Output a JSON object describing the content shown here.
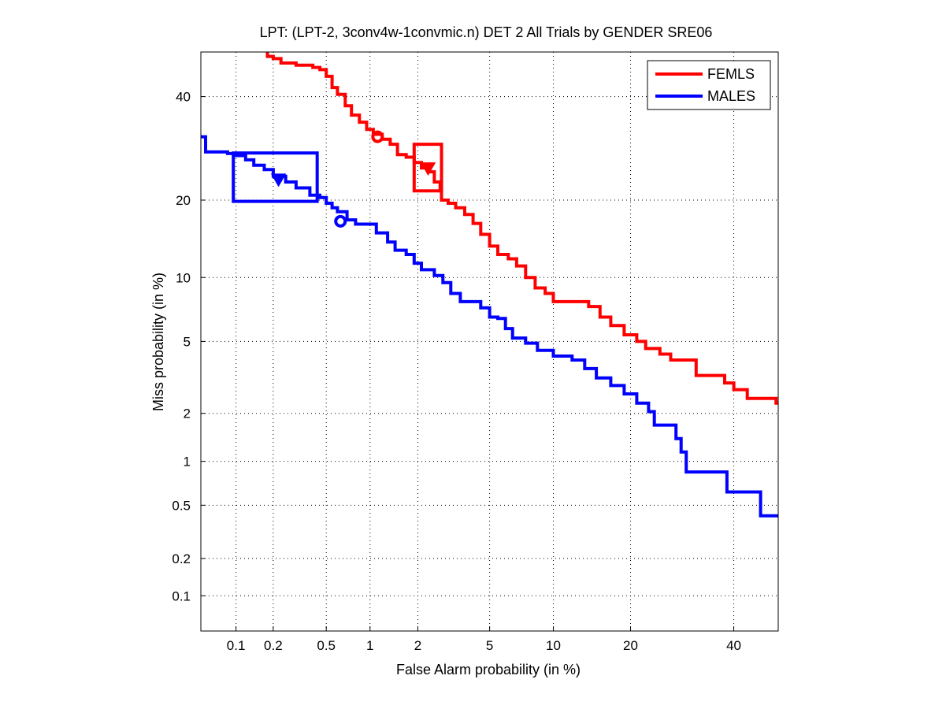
{
  "chart_data": {
    "type": "line",
    "title": "LPT: (LPT-2, 3conv4w-1convmic.n) DET 2 All Trials by GENDER SRE06",
    "xlabel": "False Alarm probability (in %)",
    "ylabel": "Miss probability (in %)",
    "xscale": "normal-deviate",
    "yscale": "normal-deviate",
    "xlim": [
      0.05,
      50
    ],
    "ylim": [
      0.05,
      50
    ],
    "xticks": [
      0.1,
      0.2,
      0.5,
      1,
      2,
      5,
      10,
      20,
      40
    ],
    "xtick_labels": [
      "0.1",
      "0.2",
      "0.5",
      "1",
      "2",
      "5",
      "10",
      "20",
      "40"
    ],
    "yticks": [
      0.1,
      0.2,
      0.5,
      1,
      2,
      5,
      10,
      20,
      40
    ],
    "ytick_labels": [
      "0.1",
      "0.2",
      "0.5",
      "1",
      "2",
      "5",
      "10",
      "20",
      "40"
    ],
    "grid": true,
    "legend_position": "top-right",
    "series": [
      {
        "name": "FEMLS",
        "color": "#ff0000",
        "points": [
          [
            0.18,
            50
          ],
          [
            0.18,
            49.0
          ],
          [
            0.2,
            48.5
          ],
          [
            0.23,
            47.5
          ],
          [
            0.3,
            47.0
          ],
          [
            0.4,
            46.5
          ],
          [
            0.45,
            46.0
          ],
          [
            0.5,
            44.5
          ],
          [
            0.55,
            42.0
          ],
          [
            0.6,
            40.5
          ],
          [
            0.68,
            38.0
          ],
          [
            0.75,
            36.0
          ],
          [
            0.85,
            34.5
          ],
          [
            0.95,
            33.0
          ],
          [
            1.05,
            32.0
          ],
          [
            1.2,
            31.0
          ],
          [
            1.35,
            30.0
          ],
          [
            1.5,
            28.0
          ],
          [
            1.7,
            27.5
          ],
          [
            1.9,
            26.5
          ],
          [
            2.1,
            25.5
          ],
          [
            2.3,
            24.8
          ],
          [
            2.5,
            23.0
          ],
          [
            2.7,
            21.5
          ],
          [
            2.75,
            20.0
          ],
          [
            3.0,
            19.5
          ],
          [
            3.3,
            18.8
          ],
          [
            3.7,
            17.8
          ],
          [
            4.1,
            16.5
          ],
          [
            4.5,
            15.0
          ],
          [
            5.0,
            13.5
          ],
          [
            5.5,
            12.5
          ],
          [
            6.2,
            12.0
          ],
          [
            6.8,
            11.2
          ],
          [
            7.5,
            10.0
          ],
          [
            8.3,
            9.0
          ],
          [
            9.2,
            8.5
          ],
          [
            10.0,
            7.8
          ],
          [
            12.0,
            7.8
          ],
          [
            14.0,
            7.4
          ],
          [
            15.5,
            6.6
          ],
          [
            17.0,
            6.0
          ],
          [
            19.0,
            5.4
          ],
          [
            21.0,
            5.0
          ],
          [
            22.5,
            4.6
          ],
          [
            25.0,
            4.3
          ],
          [
            27.0,
            4.0
          ],
          [
            31.0,
            4.0
          ],
          [
            32.0,
            3.3
          ],
          [
            35.0,
            3.3
          ],
          [
            38.0,
            3.0
          ],
          [
            40.0,
            2.75
          ],
          [
            43.0,
            2.45
          ],
          [
            49.0,
            2.45
          ],
          [
            49.5,
            2.3
          ],
          [
            50,
            2.3
          ]
        ],
        "markers": [
          {
            "shape": "circle",
            "x": 1.12,
            "y": 31.5
          },
          {
            "shape": "triangle-down",
            "x": 2.3,
            "y": 25.5
          }
        ],
        "confidence_box": {
          "x": [
            1.9,
            2.75
          ],
          "y": [
            21.5,
            30.0
          ]
        }
      },
      {
        "name": "MALES",
        "color": "#0000ff",
        "points": [
          [
            0.05,
            31.5
          ],
          [
            0.055,
            31.5
          ],
          [
            0.055,
            28.5
          ],
          [
            0.075,
            28.5
          ],
          [
            0.085,
            28.2
          ],
          [
            0.1,
            27.8
          ],
          [
            0.12,
            27.0
          ],
          [
            0.14,
            26.0
          ],
          [
            0.17,
            25.2
          ],
          [
            0.2,
            24.0
          ],
          [
            0.25,
            23.0
          ],
          [
            0.3,
            22.0
          ],
          [
            0.38,
            20.8
          ],
          [
            0.45,
            20.4
          ],
          [
            0.5,
            19.5
          ],
          [
            0.55,
            18.8
          ],
          [
            0.6,
            18.2
          ],
          [
            0.7,
            17.0
          ],
          [
            0.8,
            16.4
          ],
          [
            1.0,
            16.4
          ],
          [
            1.1,
            15.2
          ],
          [
            1.3,
            14.0
          ],
          [
            1.45,
            13.0
          ],
          [
            1.7,
            12.5
          ],
          [
            1.9,
            11.5
          ],
          [
            2.1,
            10.8
          ],
          [
            2.5,
            10.2
          ],
          [
            2.8,
            9.5
          ],
          [
            3.1,
            8.5
          ],
          [
            3.5,
            7.8
          ],
          [
            4.2,
            7.8
          ],
          [
            4.5,
            7.3
          ],
          [
            5.0,
            6.6
          ],
          [
            5.5,
            6.5
          ],
          [
            6.0,
            5.8
          ],
          [
            6.5,
            5.2
          ],
          [
            7.5,
            4.9
          ],
          [
            8.5,
            4.5
          ],
          [
            10.0,
            4.2
          ],
          [
            12.0,
            4.0
          ],
          [
            13.5,
            3.6
          ],
          [
            15.0,
            3.2
          ],
          [
            17.0,
            2.9
          ],
          [
            19.0,
            2.6
          ],
          [
            21.0,
            2.3
          ],
          [
            23.0,
            2.05
          ],
          [
            24.0,
            1.7
          ],
          [
            27.0,
            1.7
          ],
          [
            28.0,
            1.4
          ],
          [
            29.0,
            1.15
          ],
          [
            30.0,
            0.85
          ],
          [
            37.0,
            0.85
          ],
          [
            38.5,
            0.62
          ],
          [
            45.0,
            0.62
          ],
          [
            46.0,
            0.42
          ],
          [
            50,
            0.42
          ]
        ],
        "markers": [
          {
            "shape": "circle",
            "x": 0.63,
            "y": 16.8
          },
          {
            "shape": "triangle-down",
            "x": 0.22,
            "y": 23.5
          }
        ],
        "confidence_box": {
          "x": [
            0.095,
            0.43
          ],
          "y": [
            19.8,
            28.3
          ]
        }
      }
    ]
  }
}
